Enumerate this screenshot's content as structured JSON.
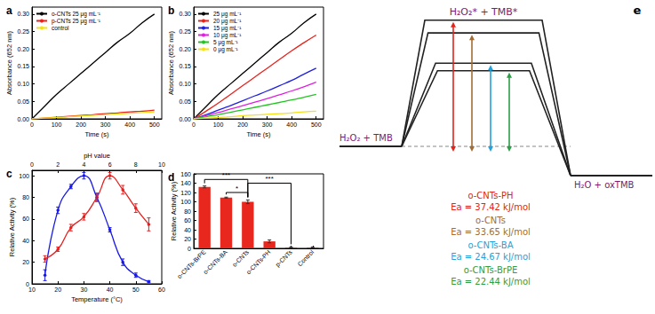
{
  "chart_data": [
    {
      "type": "line",
      "title": "a",
      "xlabel": "Time (s)",
      "ylabel": "Absorbance (652 nm)",
      "x": [
        0,
        50,
        100,
        150,
        200,
        250,
        300,
        350,
        400,
        450,
        500
      ],
      "series": [
        {
          "name": "o-CNTs 25 μg mL⁻¹",
          "color": "#000000",
          "values": [
            0,
            0.035,
            0.07,
            0.1,
            0.13,
            0.16,
            0.19,
            0.22,
            0.245,
            0.275,
            0.3
          ]
        },
        {
          "name": "p-CNTs 25 μg mL⁻¹",
          "color": "#e8221c",
          "values": [
            0,
            0.002,
            0.005,
            0.007,
            0.01,
            0.012,
            0.015,
            0.017,
            0.02,
            0.022,
            0.025
          ]
        },
        {
          "name": "control",
          "color": "#f2e01a",
          "values": [
            0,
            0.002,
            0.004,
            0.006,
            0.008,
            0.01,
            0.012,
            0.014,
            0.016,
            0.018,
            0.02
          ]
        }
      ],
      "xlim": [
        0,
        530
      ],
      "xticks": [
        0,
        100,
        200,
        300,
        400,
        500
      ],
      "ylim": [
        0,
        0.32
      ],
      "yticks": [
        {
          "value": 0,
          "label": "0.00"
        },
        {
          "value": 0.05,
          "label": "0.05"
        },
        {
          "value": 0.1,
          "label": "0.10"
        },
        {
          "value": 0.15,
          "label": "0.15"
        },
        {
          "value": 0.2,
          "label": "0.20"
        },
        {
          "value": 0.25,
          "label": "0.25"
        },
        {
          "value": 0.3,
          "label": "0.30"
        }
      ],
      "marker": "none",
      "grid": false,
      "legend": "upper left"
    },
    {
      "type": "line",
      "title": "b",
      "xlabel": "Time (s)",
      "ylabel": "Absorbance (652 nm)",
      "x": [
        0,
        50,
        100,
        150,
        200,
        250,
        300,
        350,
        400,
        450,
        500
      ],
      "series": [
        {
          "name": "25 μg mL⁻¹",
          "color": "#000000",
          "values": [
            0,
            0.035,
            0.07,
            0.1,
            0.13,
            0.16,
            0.19,
            0.22,
            0.245,
            0.275,
            0.3
          ]
        },
        {
          "name": "20 μg mL⁻¹",
          "color": "#e8221c",
          "values": [
            0,
            0.022,
            0.045,
            0.07,
            0.095,
            0.12,
            0.145,
            0.17,
            0.195,
            0.218,
            0.24
          ]
        },
        {
          "name": "15 μg mL⁻¹",
          "color": "#1f1fe0",
          "values": [
            0,
            0.012,
            0.025,
            0.038,
            0.052,
            0.066,
            0.08,
            0.095,
            0.11,
            0.128,
            0.145
          ]
        },
        {
          "name": "10 μg mL⁻¹",
          "color": "#e020e0",
          "values": [
            0,
            0.009,
            0.018,
            0.028,
            0.038,
            0.048,
            0.058,
            0.069,
            0.08,
            0.092,
            0.105
          ]
        },
        {
          "name": "5 μg mL⁻¹",
          "color": "#22c422",
          "values": [
            0,
            0.006,
            0.012,
            0.019,
            0.026,
            0.033,
            0.04,
            0.047,
            0.054,
            0.062,
            0.07
          ]
        },
        {
          "name": "0 μg mL⁻¹",
          "color": "#f2e01a",
          "values": [
            0,
            0.002,
            0.004,
            0.006,
            0.009,
            0.011,
            0.013,
            0.015,
            0.017,
            0.02,
            0.022
          ]
        }
      ],
      "xlim": [
        0,
        530
      ],
      "xticks": [
        0,
        100,
        200,
        300,
        400,
        500
      ],
      "ylim": [
        0,
        0.32
      ],
      "yticks": [
        {
          "value": 0,
          "label": "0.00"
        },
        {
          "value": 0.05,
          "label": "0.05"
        },
        {
          "value": 0.1,
          "label": "0.10"
        },
        {
          "value": 0.15,
          "label": "0.15"
        },
        {
          "value": 0.2,
          "label": "0.20"
        },
        {
          "value": 0.25,
          "label": "0.25"
        },
        {
          "value": 0.3,
          "label": "0.30"
        }
      ],
      "marker": "none",
      "grid": false,
      "legend": "upper left"
    },
    {
      "type": "line",
      "title": "c",
      "xlabel": "Temperature (°C)",
      "x2label": "pH value",
      "ylabel": "Relative Activity (%)",
      "series": [
        {
          "color": "#1a1ae6",
          "axis": "x2",
          "marker": "circle",
          "x": [
            1,
            2,
            3,
            4,
            5,
            6,
            7,
            8,
            9
          ],
          "values": [
            8,
            68,
            90,
            100,
            80,
            50,
            20,
            8,
            2
          ],
          "errors": [
            5,
            3,
            2,
            3,
            3,
            2,
            3,
            2,
            1
          ]
        },
        {
          "color": "#e62020",
          "axis": "x",
          "marker": "circle",
          "x": [
            15,
            20,
            25,
            30,
            35,
            40,
            45,
            50,
            55
          ],
          "values": [
            23,
            32,
            52,
            62,
            80,
            100,
            87,
            70,
            55
          ],
          "errors": [
            3,
            2,
            3,
            3,
            4,
            3,
            4,
            4,
            6
          ]
        }
      ],
      "xlim": [
        10,
        60
      ],
      "xticks": [
        10,
        20,
        30,
        40,
        50,
        60
      ],
      "x2lim": [
        0,
        10
      ],
      "x2ticks": [
        0,
        2,
        4,
        6,
        8,
        10
      ],
      "ylim": [
        0,
        105
      ],
      "yticks": [
        0,
        20,
        40,
        60,
        80,
        100
      ],
      "grid": false
    },
    {
      "type": "bar",
      "title": "d",
      "ylabel": "Relative Activity (%)",
      "categories": [
        "o-CNTs-BrPE",
        "o-CNTs-BA",
        "o-CNTs",
        "o-CNTs-PH",
        "p-CNTs",
        "Control"
      ],
      "values": [
        132,
        109,
        100,
        15,
        2,
        2
      ],
      "errors": [
        2,
        1,
        4,
        3,
        1,
        1
      ],
      "color": "#e8281e",
      "ylim": [
        0,
        160
      ],
      "yticks": [
        0,
        20,
        40,
        60,
        80,
        100,
        120,
        140,
        160
      ],
      "annotations": [
        {
          "text": "***",
          "from": "o-CNTs-BrPE",
          "to": "o-CNTs",
          "y": 148
        },
        {
          "text": "*",
          "from": "o-CNTs-BA",
          "to": "o-CNTs",
          "y": 120
        },
        {
          "text": "***",
          "from": "o-CNTs",
          "to": "p-CNTs",
          "y": 140
        }
      ],
      "grid": false
    }
  ],
  "diagram": {
    "title": "e",
    "reactant": "H₂O₂ + TMB",
    "transition": "H₂O₂* + TMB*",
    "product": "H₂O + oxTMB",
    "catalysts": [
      {
        "name": "o-CNTs-PH",
        "ea": 37.42,
        "ea_label": "Ea = 37.42 kJ/mol",
        "color": "#e3231b"
      },
      {
        "name": "o-CNTs",
        "ea": 33.65,
        "ea_label": "Ea = 33.65 kJ/mol",
        "color": "#a26d35"
      },
      {
        "name": "o-CNTs-BA",
        "ea": 24.67,
        "ea_label": "Ea = 24.67 kJ/mol",
        "color": "#22a3dd"
      },
      {
        "name": "o-CNTs-BrPE",
        "ea": 22.44,
        "ea_label": "Ea = 22.44 kJ/mol",
        "color": "#2c9e45"
      }
    ]
  }
}
